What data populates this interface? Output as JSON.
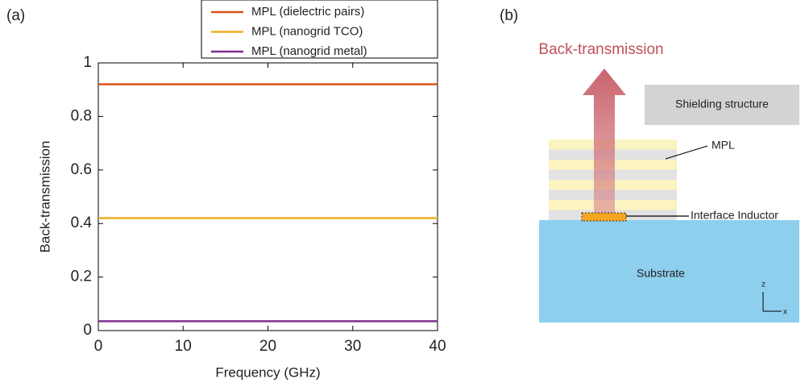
{
  "panel_labels": [
    "(a)",
    "(b)"
  ],
  "chart_data": {
    "type": "line",
    "x_label": "Frequency (GHz)",
    "y_label": "Back-transmission",
    "x": [
      0,
      40
    ],
    "series": [
      {
        "name": "MPL (dielectric pairs)",
        "color": "#d95319",
        "values": [
          0.92,
          0.92
        ]
      },
      {
        "name": "MPL (nanogrid TCO)",
        "color": "#edb120",
        "values": [
          0.42,
          0.42
        ]
      },
      {
        "name": "MPL (nanogrid metal)",
        "color": "#7e2f8e",
        "values": [
          0.035,
          0.035
        ]
      }
    ],
    "xlim": [
      0,
      40
    ],
    "xticks": [
      0,
      10,
      20,
      30,
      40
    ],
    "ylim": [
      0,
      1
    ],
    "yticks": [
      0,
      0.2,
      0.4,
      0.6,
      0.8,
      1
    ],
    "grid": false,
    "legend": "top-right"
  },
  "diagram": {
    "arrow_label": "Back-transmission",
    "shielding": "Shielding structure",
    "mpl": "MPL",
    "inductor": "Interface Inductor",
    "substrate": "Substrate",
    "axis_z": "z",
    "axis_x": "x"
  }
}
